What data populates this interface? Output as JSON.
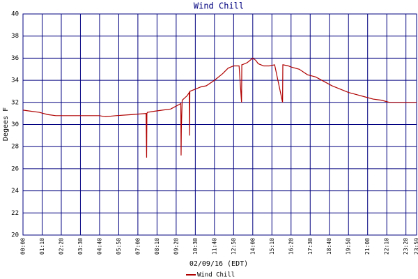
{
  "chart_data": {
    "type": "line",
    "title": "Wind Chill",
    "xlabel": "02/09/16 (EDT)",
    "ylabel": "Degees F",
    "x": [
      0,
      30,
      60,
      90,
      120,
      180,
      240,
      280,
      300,
      340,
      400,
      450,
      452,
      453,
      455,
      480,
      510,
      540,
      570,
      577,
      578,
      579,
      582,
      600,
      608,
      609,
      610,
      630,
      650,
      670,
      700,
      730,
      750,
      770,
      790,
      799,
      800,
      801,
      820,
      840,
      851,
      860,
      880,
      900,
      920,
      949,
      950,
      951,
      970,
      980,
      1010,
      1040,
      1070,
      1100,
      1130,
      1160,
      1190,
      1220,
      1250,
      1280,
      1310,
      1340,
      1370,
      1400,
      1439
    ],
    "series": [
      {
        "name": "Wind Chill",
        "color": "#b00000",
        "values": [
          31.3,
          31.2,
          31.1,
          30.9,
          30.8,
          30.8,
          30.8,
          30.8,
          30.7,
          30.8,
          30.9,
          31.0,
          27.0,
          31.0,
          31.1,
          31.2,
          31.3,
          31.4,
          31.8,
          31.9,
          27.2,
          29.7,
          32.2,
          32.6,
          32.9,
          29.0,
          33.0,
          33.2,
          33.4,
          33.5,
          34.0,
          34.6,
          35.1,
          35.3,
          35.3,
          32.0,
          35.4,
          35.4,
          35.6,
          36.0,
          35.8,
          35.5,
          35.3,
          35.3,
          35.4,
          32.0,
          35.4,
          35.4,
          35.3,
          35.2,
          35.0,
          34.5,
          34.3,
          33.9,
          33.5,
          33.2,
          32.9,
          32.7,
          32.5,
          32.3,
          32.2,
          32.0,
          32.0,
          32.0,
          32.0
        ]
      }
    ],
    "xlim": [
      0,
      1439
    ],
    "xticks": [
      {
        "value": 0,
        "label": "00:00"
      },
      {
        "value": 70,
        "label": "01:10"
      },
      {
        "value": 140,
        "label": "02:20"
      },
      {
        "value": 210,
        "label": "03:30"
      },
      {
        "value": 280,
        "label": "04:40"
      },
      {
        "value": 350,
        "label": "05:50"
      },
      {
        "value": 420,
        "label": "07:00"
      },
      {
        "value": 490,
        "label": "08:10"
      },
      {
        "value": 560,
        "label": "09:20"
      },
      {
        "value": 630,
        "label": "10:30"
      },
      {
        "value": 700,
        "label": "11:40"
      },
      {
        "value": 770,
        "label": "12:50"
      },
      {
        "value": 840,
        "label": "14:00"
      },
      {
        "value": 910,
        "label": "15:10"
      },
      {
        "value": 980,
        "label": "16:20"
      },
      {
        "value": 1050,
        "label": "17:30"
      },
      {
        "value": 1120,
        "label": "18:40"
      },
      {
        "value": 1190,
        "label": "19:50"
      },
      {
        "value": 1260,
        "label": "21:00"
      },
      {
        "value": 1330,
        "label": "22:10"
      },
      {
        "value": 1400,
        "label": "23:20"
      },
      {
        "value": 1439,
        "label": "23:59"
      }
    ],
    "ylim": [
      20,
      40
    ],
    "yticks": [
      20,
      22,
      24,
      26,
      28,
      30,
      32,
      34,
      36,
      38,
      40
    ],
    "grid": true
  }
}
